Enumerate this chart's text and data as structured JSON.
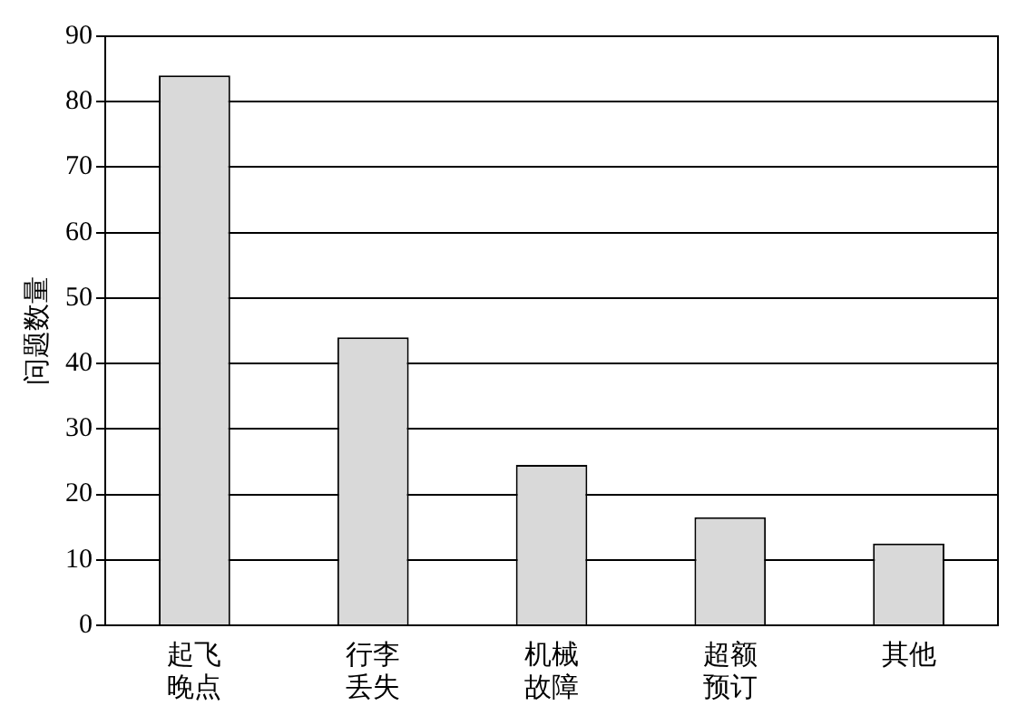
{
  "chart_data": {
    "type": "bar",
    "ylabel": "问题数量",
    "categories": [
      "起飞晚点",
      "行李丢失",
      "机械故障",
      "超额预订",
      "其他"
    ],
    "values": [
      84,
      44,
      24.5,
      16.5,
      12.5
    ],
    "color": "#d9d9d9",
    "ylim": [
      0,
      90
    ],
    "yticks": [
      0,
      10,
      20,
      30,
      40,
      50,
      60,
      70,
      80,
      90
    ],
    "grid": "y"
  }
}
